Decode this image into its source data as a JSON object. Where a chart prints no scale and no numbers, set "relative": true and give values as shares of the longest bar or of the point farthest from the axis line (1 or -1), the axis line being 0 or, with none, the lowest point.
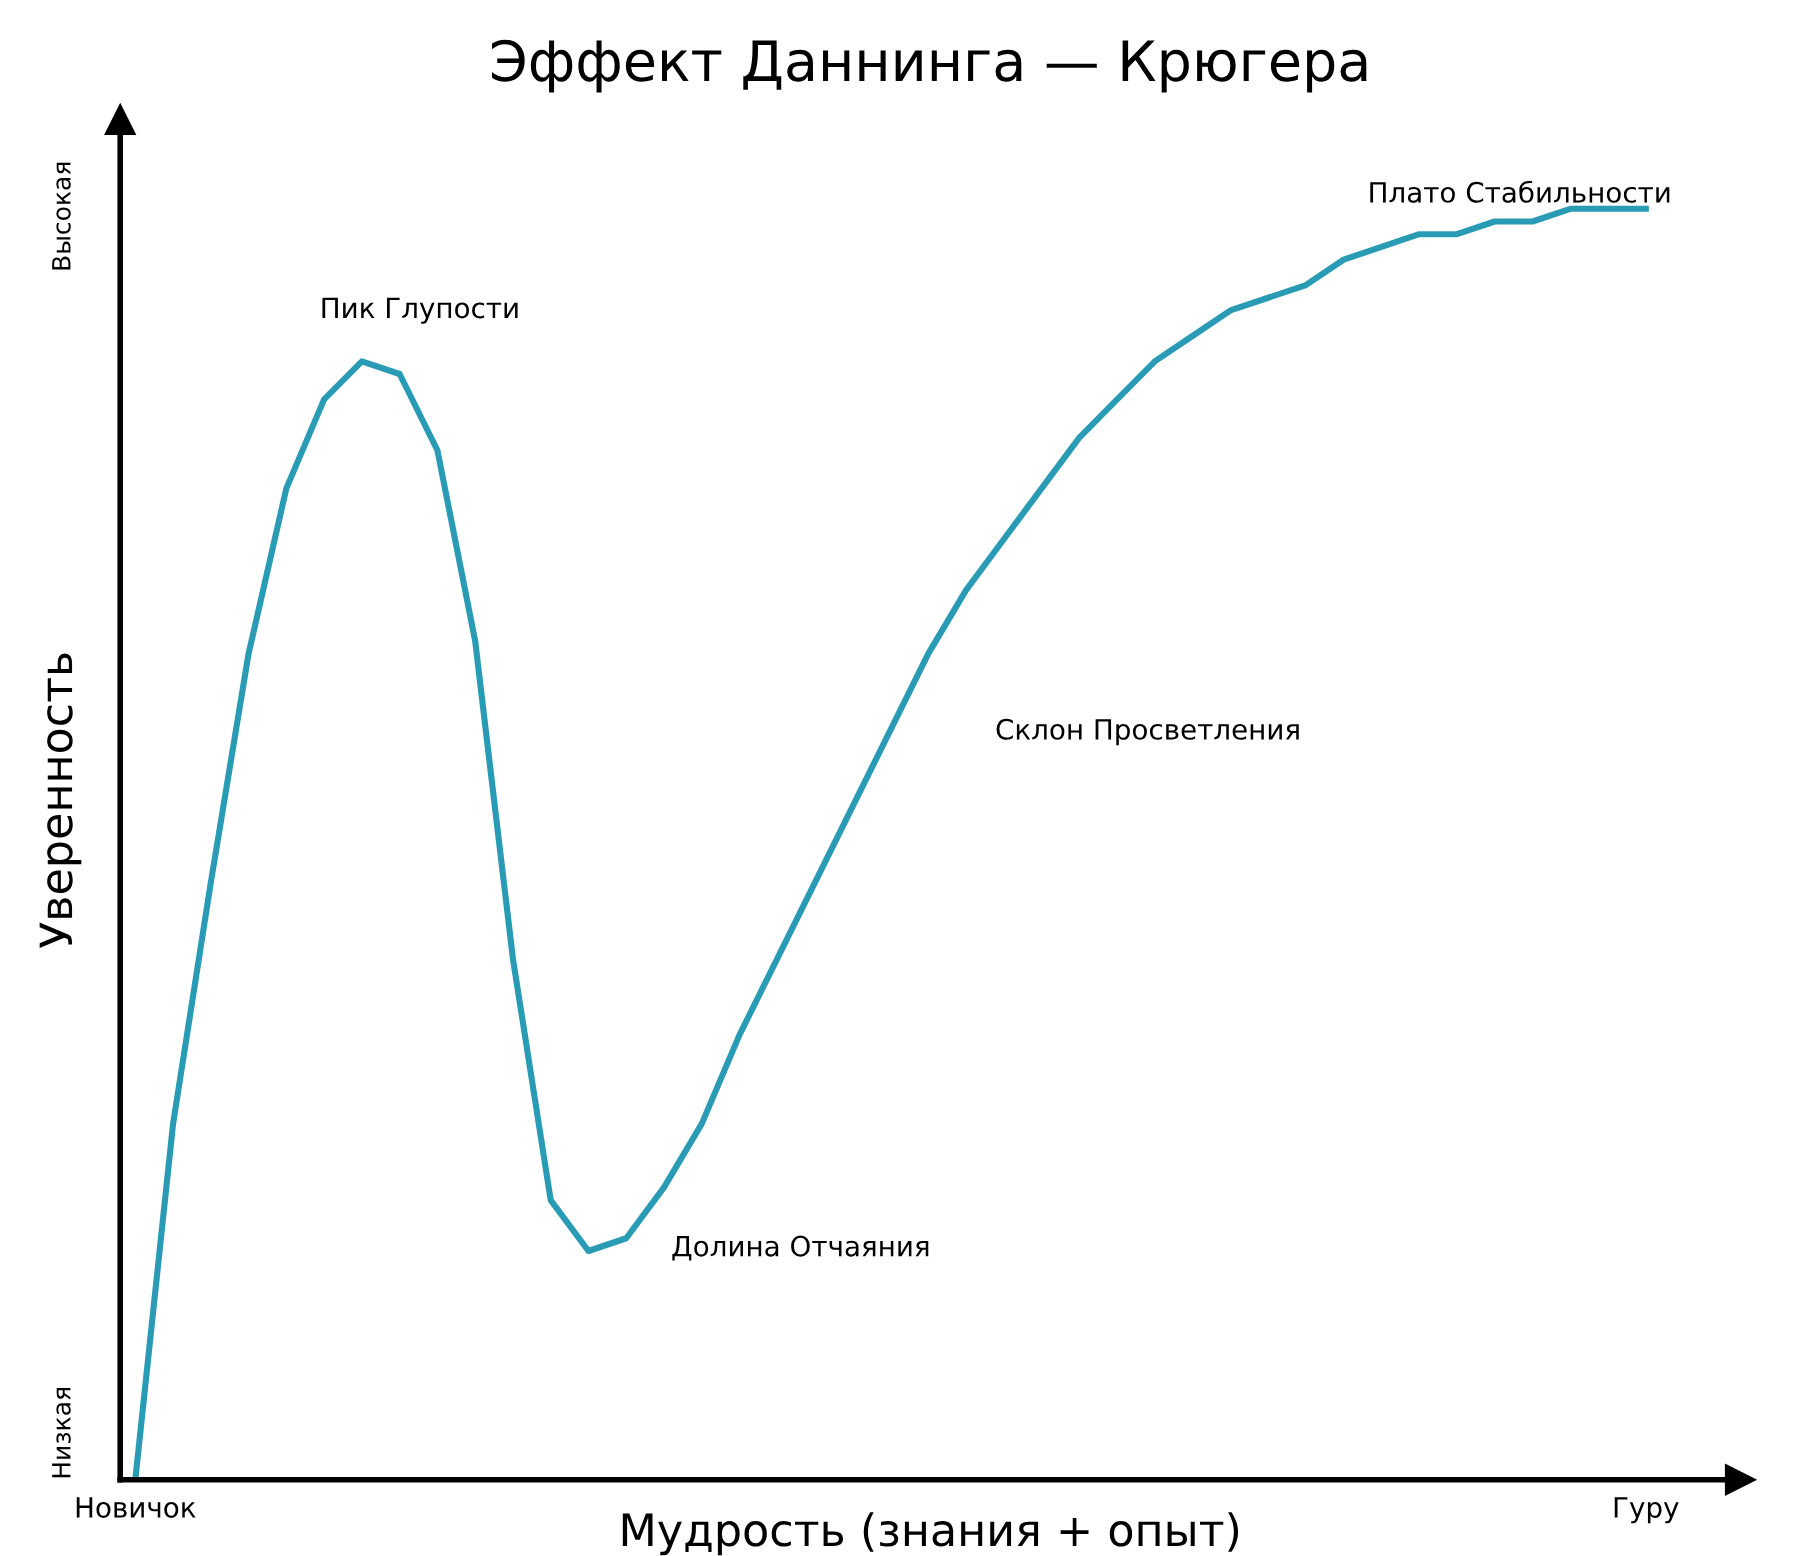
{
  "chart_data": {
    "type": "line",
    "relative": true,
    "title": "Эффект Даннинга — Крюгера",
    "xlabel": "Мудрость (знания + опыт)",
    "ylabel": "Уверенность",
    "categories": [
      "Новичок",
      null,
      null,
      null,
      null,
      null,
      null,
      null,
      null,
      null,
      null,
      null,
      null,
      null,
      null,
      null,
      null,
      null,
      null,
      null,
      null,
      null,
      null,
      null,
      null,
      null,
      null,
      null,
      null,
      null,
      null,
      null,
      null,
      null,
      null,
      null,
      null,
      null,
      null,
      null,
      "Гуру"
    ],
    "series": [
      {
        "color": "#2a9bb5",
        "values": [
          0,
          0.28,
          0.47,
          0.65,
          0.78,
          0.85,
          0.88,
          0.87,
          0.81,
          0.66,
          0.41,
          0.22,
          0.18,
          0.19,
          0.23,
          0.28,
          0.35,
          0.41,
          0.47,
          0.53,
          0.59,
          0.65,
          0.7,
          0.74,
          0.78,
          0.82,
          0.85,
          0.88,
          0.9,
          0.92,
          0.93,
          0.94,
          0.96,
          0.97,
          0.98,
          0.98,
          0.99,
          0.99,
          1.0,
          1.0,
          1
        ]
      }
    ],
    "annotations": [
      "Высокая",
      "Низкая",
      "Пик Глупости",
      "Долина Отчаяния",
      "Склон Просветления",
      "Плато Стабильности"
    ],
    "grid": false,
    "legend": false,
    "marker": "none",
    "line_style": "solid"
  }
}
